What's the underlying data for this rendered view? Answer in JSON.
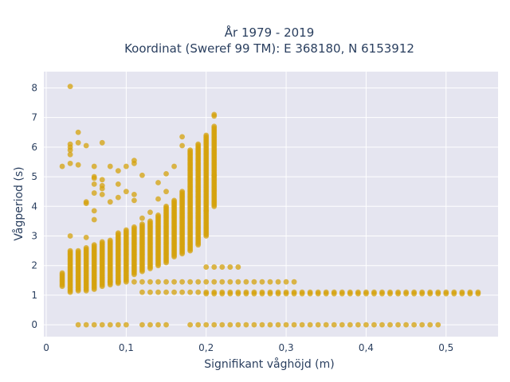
{
  "chart_data": {
    "type": "scatter",
    "title_line1": "År 1979 - 2019",
    "title_line2": "Koordinat (Sweref 99 TM): E 368180, N 6153912",
    "xlabel": "Signifikant våghöjd (m)",
    "ylabel": "Vågperiod (s)",
    "xlim": [
      -0.003,
      0.565
    ],
    "ylim": [
      -0.4,
      8.55
    ],
    "x_ticks": [
      0,
      0.1,
      0.2,
      0.3,
      0.4,
      0.5
    ],
    "x_tick_labels": [
      "0",
      "0,1",
      "0,2",
      "0,3",
      "0,4",
      "0,5"
    ],
    "y_ticks": [
      0,
      1,
      2,
      3,
      4,
      5,
      6,
      7,
      8
    ],
    "y_tick_labels": [
      "0",
      "1",
      "2",
      "3",
      "4",
      "5",
      "6",
      "7",
      "8"
    ],
    "grid": true,
    "marker_color": "#d4a20c",
    "background": "#e5e5f0",
    "columns": [
      {
        "x": 0.02,
        "ymin": 1.3,
        "ymax": 1.75
      },
      {
        "x": 0.03,
        "ymin": 1.1,
        "ymax": 2.5
      },
      {
        "x": 0.04,
        "ymin": 1.15,
        "ymax": 2.5
      },
      {
        "x": 0.05,
        "ymin": 1.15,
        "ymax": 2.6
      },
      {
        "x": 0.06,
        "ymin": 1.2,
        "ymax": 2.7
      },
      {
        "x": 0.07,
        "ymin": 1.3,
        "ymax": 2.8
      },
      {
        "x": 0.08,
        "ymin": 1.35,
        "ymax": 2.85
      },
      {
        "x": 0.09,
        "ymin": 1.4,
        "ymax": 3.1
      },
      {
        "x": 0.1,
        "ymin": 1.5,
        "ymax": 3.2
      },
      {
        "x": 0.11,
        "ymin": 1.7,
        "ymax": 3.3
      },
      {
        "x": 0.12,
        "ymin": 1.8,
        "ymax": 3.4
      },
      {
        "x": 0.13,
        "ymin": 1.9,
        "ymax": 3.5
      },
      {
        "x": 0.14,
        "ymin": 2.0,
        "ymax": 3.7
      },
      {
        "x": 0.15,
        "ymin": 2.1,
        "ymax": 4.0
      },
      {
        "x": 0.16,
        "ymin": 2.3,
        "ymax": 4.2
      },
      {
        "x": 0.17,
        "ymin": 2.4,
        "ymax": 4.5
      },
      {
        "x": 0.18,
        "ymin": 2.5,
        "ymax": 5.9
      },
      {
        "x": 0.19,
        "ymin": 2.7,
        "ymax": 6.1
      },
      {
        "x": 0.2,
        "ymin": 3.0,
        "ymax": 6.4
      },
      {
        "x": 0.21,
        "ymin": 4.0,
        "ymax": 6.7
      }
    ],
    "outliers": [
      {
        "x": 0.03,
        "y": 8.05
      },
      {
        "x": 0.03,
        "y": 6.1
      },
      {
        "x": 0.03,
        "y": 6.0
      },
      {
        "x": 0.03,
        "y": 5.9
      },
      {
        "x": 0.03,
        "y": 5.75
      },
      {
        "x": 0.03,
        "y": 5.45
      },
      {
        "x": 0.03,
        "y": 3.0
      },
      {
        "x": 0.02,
        "y": 5.35
      },
      {
        "x": 0.04,
        "y": 6.5
      },
      {
        "x": 0.04,
        "y": 6.15
      },
      {
        "x": 0.04,
        "y": 5.4
      },
      {
        "x": 0.05,
        "y": 6.05
      },
      {
        "x": 0.05,
        "y": 4.15
      },
      {
        "x": 0.05,
        "y": 4.1
      },
      {
        "x": 0.05,
        "y": 2.95
      },
      {
        "x": 0.06,
        "y": 5.35
      },
      {
        "x": 0.06,
        "y": 5.0
      },
      {
        "x": 0.06,
        "y": 4.95
      },
      {
        "x": 0.06,
        "y": 4.75
      },
      {
        "x": 0.06,
        "y": 4.45
      },
      {
        "x": 0.06,
        "y": 3.85
      },
      {
        "x": 0.06,
        "y": 3.55
      },
      {
        "x": 0.07,
        "y": 6.15
      },
      {
        "x": 0.07,
        "y": 4.9
      },
      {
        "x": 0.07,
        "y": 4.7
      },
      {
        "x": 0.07,
        "y": 4.6
      },
      {
        "x": 0.07,
        "y": 4.4
      },
      {
        "x": 0.08,
        "y": 5.35
      },
      {
        "x": 0.08,
        "y": 4.15
      },
      {
        "x": 0.09,
        "y": 5.2
      },
      {
        "x": 0.09,
        "y": 4.75
      },
      {
        "x": 0.09,
        "y": 4.3
      },
      {
        "x": 0.1,
        "y": 5.35
      },
      {
        "x": 0.1,
        "y": 4.5
      },
      {
        "x": 0.11,
        "y": 5.55
      },
      {
        "x": 0.11,
        "y": 5.45
      },
      {
        "x": 0.11,
        "y": 4.4
      },
      {
        "x": 0.11,
        "y": 4.2
      },
      {
        "x": 0.12,
        "y": 5.05
      },
      {
        "x": 0.12,
        "y": 3.6
      },
      {
        "x": 0.13,
        "y": 3.8
      },
      {
        "x": 0.14,
        "y": 4.25
      },
      {
        "x": 0.14,
        "y": 4.8
      },
      {
        "x": 0.15,
        "y": 5.1
      },
      {
        "x": 0.15,
        "y": 4.5
      },
      {
        "x": 0.16,
        "y": 5.35
      },
      {
        "x": 0.17,
        "y": 6.35
      },
      {
        "x": 0.17,
        "y": 6.05
      },
      {
        "x": 0.21,
        "y": 7.1
      },
      {
        "x": 0.21,
        "y": 7.05
      },
      {
        "x": 0.21,
        "y": 5.05
      },
      {
        "x": 0.2,
        "y": 3.85
      }
    ],
    "bands": [
      {
        "y": 1.45,
        "xmin": 0.1,
        "xmax": 0.31,
        "step": 0.01
      },
      {
        "y": 1.95,
        "xmin": 0.2,
        "xmax": 0.24,
        "step": 0.01
      },
      {
        "y": 1.1,
        "xmin": 0.12,
        "xmax": 0.54,
        "step": 0.01
      },
      {
        "y": 1.05,
        "xmin": 0.2,
        "xmax": 0.54,
        "step": 0.01
      },
      {
        "y": 0.0,
        "xmin": 0.18,
        "xmax": 0.49,
        "step": 0.01
      }
    ],
    "band_points": [
      {
        "x": 0.04,
        "y": 0.0
      },
      {
        "x": 0.05,
        "y": 0.0
      },
      {
        "x": 0.06,
        "y": 0.0
      },
      {
        "x": 0.07,
        "y": 0.0
      },
      {
        "x": 0.08,
        "y": 0.0
      },
      {
        "x": 0.09,
        "y": 0.0
      },
      {
        "x": 0.1,
        "y": 0.0
      },
      {
        "x": 0.12,
        "y": 0.0
      },
      {
        "x": 0.13,
        "y": 0.0
      },
      {
        "x": 0.14,
        "y": 0.0
      },
      {
        "x": 0.15,
        "y": 0.0
      },
      {
        "x": 0.09,
        "y": 1.45
      },
      {
        "x": 0.08,
        "y": 1.45
      }
    ]
  }
}
